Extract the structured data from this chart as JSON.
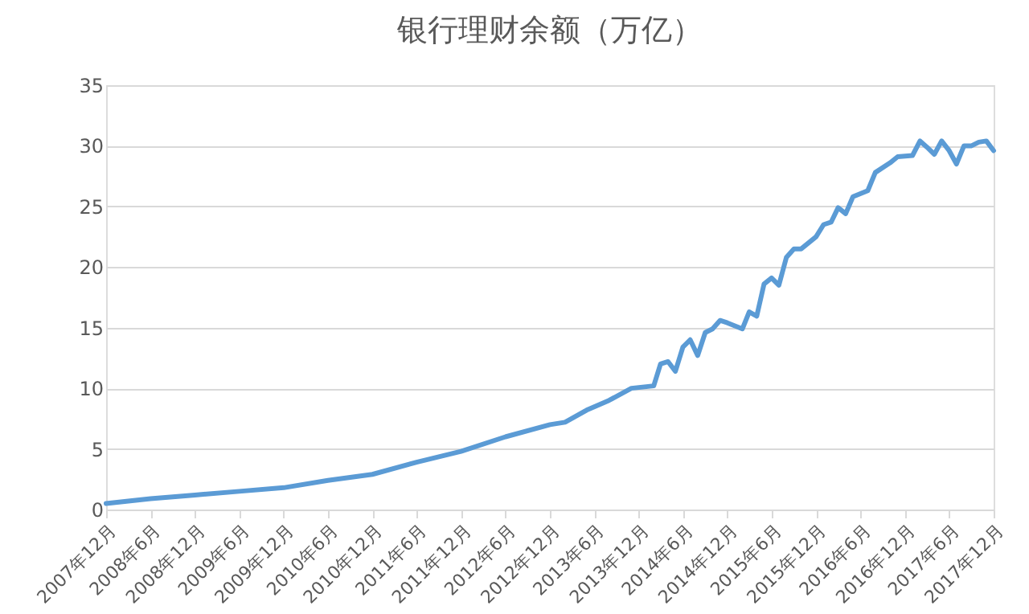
{
  "chart_data": {
    "type": "line",
    "title": "银行理财余额（万亿）",
    "x": [
      "2007-12",
      "2008-06",
      "2008-12",
      "2009-06",
      "2009-12",
      "2010-06",
      "2010-12",
      "2011-06",
      "2011-12",
      "2012-06",
      "2012-12",
      "2013-02",
      "2013-05",
      "2013-08",
      "2013-11",
      "2014-02",
      "2014-03",
      "2014-04",
      "2014-05",
      "2014-06",
      "2014-07",
      "2014-08",
      "2014-09",
      "2014-10",
      "2014-11",
      "2014-12",
      "2015-02",
      "2015-03",
      "2015-04",
      "2015-05",
      "2015-06",
      "2015-07",
      "2015-08",
      "2015-09",
      "2015-10",
      "2015-12",
      "2016-01",
      "2016-02",
      "2016-03",
      "2016-04",
      "2016-05",
      "2016-07",
      "2016-08",
      "2016-10",
      "2016-11",
      "2017-01",
      "2017-02",
      "2017-03",
      "2017-04",
      "2017-05",
      "2017-06",
      "2017-07",
      "2017-08",
      "2017-09",
      "2017-10",
      "2017-11",
      "2017-12"
    ],
    "series": [
      {
        "color": "#5b9bd5",
        "values": [
          0.5,
          0.9,
          1.2,
          1.5,
          1.8,
          2.4,
          2.9,
          3.9,
          4.8,
          6.0,
          7.0,
          7.2,
          8.2,
          9.0,
          10.0,
          10.2,
          12.0,
          12.2,
          11.4,
          13.4,
          14.0,
          12.7,
          14.6,
          14.9,
          15.6,
          15.4,
          14.9,
          16.3,
          15.95,
          18.6,
          19.1,
          18.5,
          20.8,
          21.5,
          21.5,
          22.5,
          23.5,
          23.7,
          24.9,
          24.4,
          25.8,
          26.3,
          27.8,
          28.6,
          29.1,
          29.2,
          30.4,
          29.9,
          29.3,
          30.4,
          29.6,
          28.5,
          30.0,
          30.0,
          30.3,
          30.4,
          29.6
        ]
      }
    ],
    "xlim": [
      "2007-12",
      "2017-12"
    ],
    "xticks": [
      {
        "value": "2007-12",
        "label": "2007年12月"
      },
      {
        "value": "2008-06",
        "label": "2008年6月"
      },
      {
        "value": "2008-12",
        "label": "2008年12月"
      },
      {
        "value": "2009-06",
        "label": "2009年6月"
      },
      {
        "value": "2009-12",
        "label": "2009年12月"
      },
      {
        "value": "2010-06",
        "label": "2010年6月"
      },
      {
        "value": "2010-12",
        "label": "2010年12月"
      },
      {
        "value": "2011-06",
        "label": "2011年6月"
      },
      {
        "value": "2011-12",
        "label": "2011年12月"
      },
      {
        "value": "2012-06",
        "label": "2012年6月"
      },
      {
        "value": "2012-12",
        "label": "2012年12月"
      },
      {
        "value": "2013-06",
        "label": "2013年6月"
      },
      {
        "value": "2013-12",
        "label": "2013年12月"
      },
      {
        "value": "2014-06",
        "label": "2014年6月"
      },
      {
        "value": "2014-12",
        "label": "2014年12月"
      },
      {
        "value": "2015-06",
        "label": "2015年6月"
      },
      {
        "value": "2015-12",
        "label": "2015年12月"
      },
      {
        "value": "2016-06",
        "label": "2016年6月"
      },
      {
        "value": "2016-12",
        "label": "2016年12月"
      },
      {
        "value": "2017-06",
        "label": "2017年6月"
      },
      {
        "value": "2017-12",
        "label": "2017年12月"
      }
    ],
    "ylim": [
      0,
      35
    ],
    "yticks": [
      0,
      5,
      10,
      15,
      20,
      25,
      30,
      35
    ],
    "grid": "y",
    "marker": "none",
    "line_style": "solid"
  }
}
